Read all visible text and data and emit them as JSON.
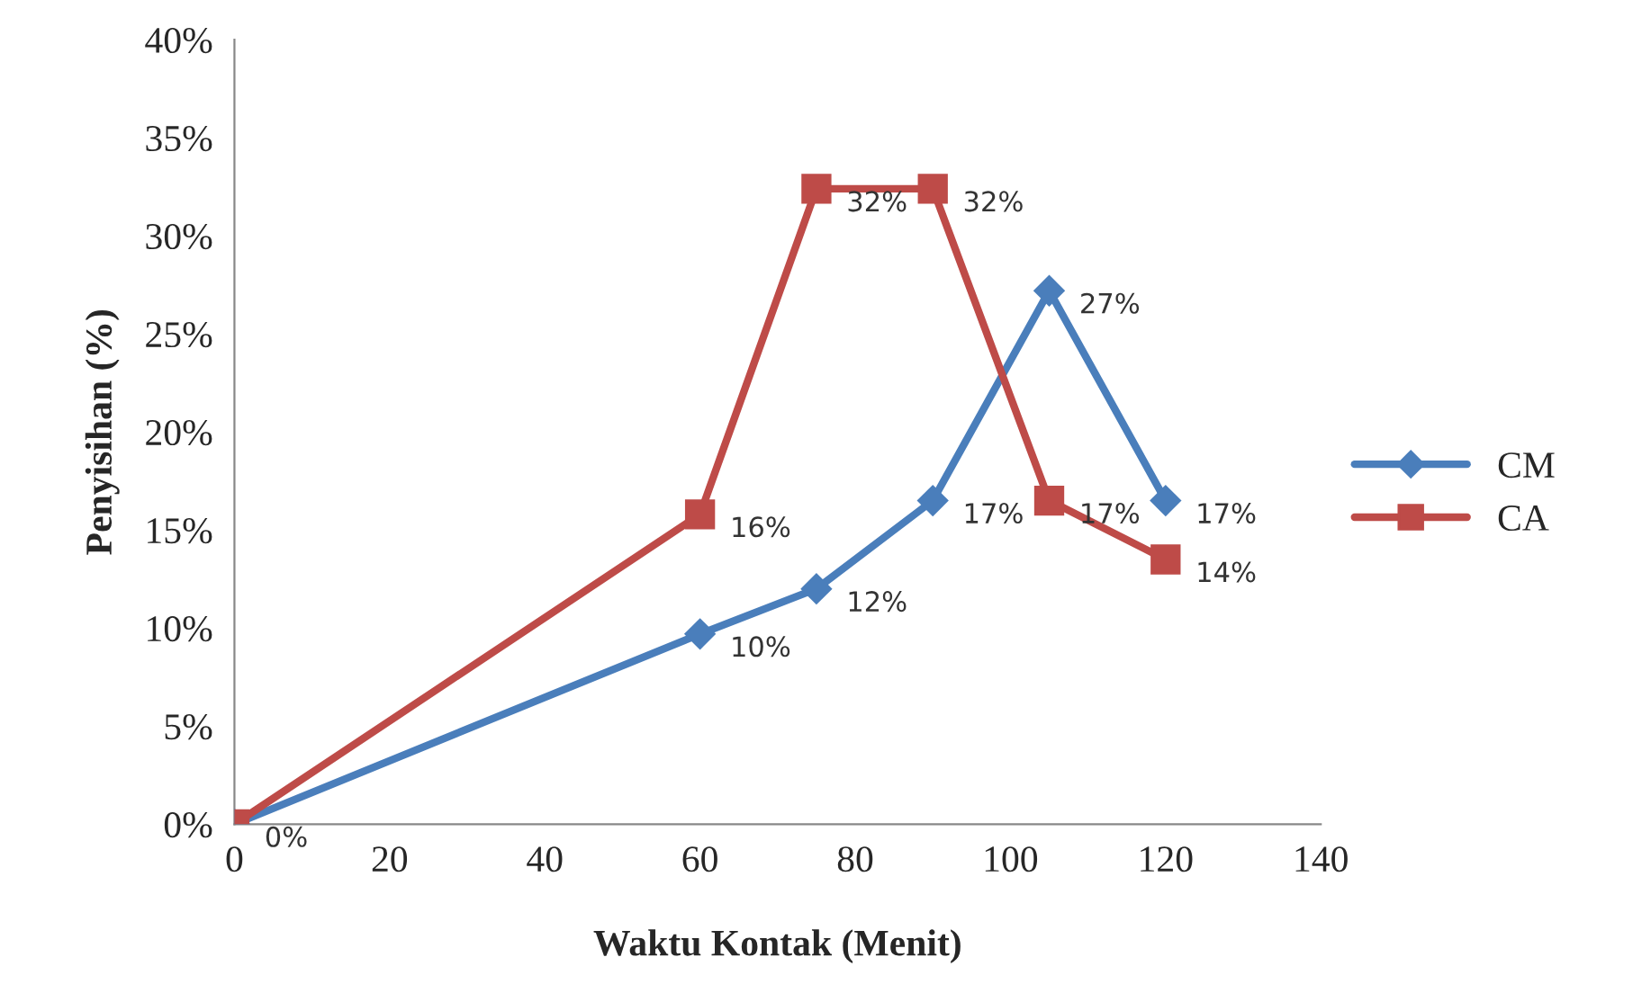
{
  "chart_data": {
    "type": "line",
    "xlabel": "Waktu Kontak (Menit)",
    "ylabel": "Penyisihan (%)",
    "x": [
      0,
      60,
      75,
      90,
      105,
      120
    ],
    "series": [
      {
        "name": "CM",
        "color": "#4a7ebb",
        "marker": "diamond",
        "values": [
          0,
          9.7,
          12,
          16.5,
          27.2,
          16.5
        ],
        "value_labels": [
          "0%",
          "10%",
          "12%",
          "17%",
          "27%",
          "17%"
        ]
      },
      {
        "name": "CA",
        "color": "#be4b48",
        "marker": "square",
        "values": [
          0,
          15.8,
          32.4,
          32.4,
          16.5,
          13.5
        ],
        "value_labels": [
          null,
          "16%",
          "32%",
          "32%",
          "17%",
          "14%"
        ]
      }
    ],
    "xlim": [
      0,
      140
    ],
    "xticks": [
      0,
      20,
      40,
      60,
      80,
      100,
      120,
      140
    ],
    "ylim": [
      0,
      40
    ],
    "yticks": [
      {
        "value": 0,
        "label": "0%"
      },
      {
        "value": 5,
        "label": "5%"
      },
      {
        "value": 10,
        "label": "10%"
      },
      {
        "value": 15,
        "label": "15%"
      },
      {
        "value": 20,
        "label": "20%"
      },
      {
        "value": 25,
        "label": "25%"
      },
      {
        "value": 30,
        "label": "30%"
      },
      {
        "value": 35,
        "label": "35%"
      },
      {
        "value": 40,
        "label": "40%"
      }
    ],
    "grid": false,
    "legend": "right",
    "line_style": "solid"
  }
}
